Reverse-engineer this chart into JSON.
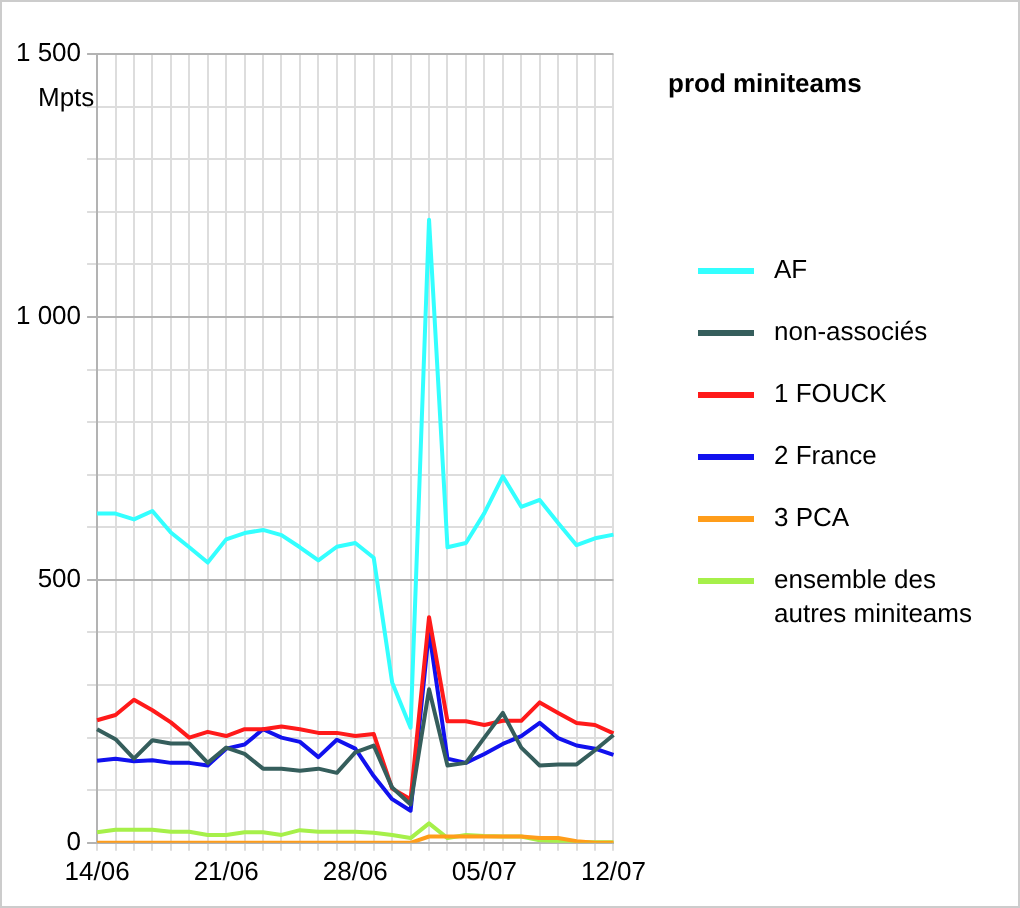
{
  "chart_data": {
    "type": "line",
    "title": "prod miniteams",
    "ylabel": "Mpts",
    "categories": [
      "14/06",
      null,
      null,
      null,
      null,
      null,
      null,
      "21/06",
      null,
      null,
      null,
      null,
      null,
      null,
      "28/06",
      null,
      null,
      null,
      null,
      null,
      null,
      "05/07",
      null,
      null,
      null,
      null,
      null,
      null,
      "12/07"
    ],
    "ylim": [
      0,
      1500
    ],
    "yticks": [
      0,
      {
        "value": 100,
        "label": null
      },
      {
        "value": 200,
        "label": null
      },
      {
        "value": 300,
        "label": null
      },
      {
        "value": 400,
        "label": null
      },
      500,
      {
        "value": 600,
        "label": null
      },
      {
        "value": 700,
        "label": null
      },
      {
        "value": 800,
        "label": null
      },
      {
        "value": 900,
        "label": null
      },
      {
        "value": 1000,
        "label": "1 000"
      },
      {
        "value": 1100,
        "label": null
      },
      {
        "value": 1200,
        "label": null
      },
      {
        "value": 1300,
        "label": null
      },
      {
        "value": 1400,
        "label": null
      },
      {
        "value": 1500,
        "label": "1 500"
      }
    ],
    "grid": true,
    "legend": "right",
    "series": [
      {
        "name": "AF",
        "color": "#33ffff",
        "values": [
          626,
          626,
          615,
          631,
          590,
          562,
          533,
          577,
          589,
          595,
          585,
          562,
          537,
          563,
          570,
          542,
          305,
          219,
          1185,
          562,
          570,
          627,
          697,
          639,
          652,
          608,
          566,
          579,
          586
        ]
      },
      {
        "name": "non-associés",
        "color": "#355e5c",
        "values": [
          216,
          197,
          160,
          195,
          189,
          189,
          152,
          181,
          169,
          141,
          141,
          137,
          141,
          133,
          172,
          185,
          105,
          73,
          292,
          147,
          152,
          200,
          247,
          181,
          147,
          149,
          149,
          176,
          205
        ]
      },
      {
        "name": "1 FOUCK",
        "color": "#ff1a1a",
        "values": [
          233,
          243,
          272,
          252,
          229,
          200,
          211,
          203,
          216,
          216,
          221,
          216,
          209,
          209,
          203,
          207,
          103,
          83,
          429,
          231,
          231,
          224,
          232,
          232,
          267,
          247,
          228,
          224,
          208
        ]
      },
      {
        "name": "2 France",
        "color": "#1111ee",
        "values": [
          156,
          160,
          155,
          157,
          152,
          152,
          147,
          179,
          187,
          216,
          200,
          192,
          163,
          196,
          179,
          127,
          83,
          61,
          403,
          160,
          152,
          169,
          188,
          203,
          228,
          199,
          185,
          179,
          167
        ]
      },
      {
        "name": "3 PCA",
        "color": "#ff9d1a",
        "values": [
          0,
          0,
          0,
          0,
          0,
          0,
          0,
          0,
          0,
          0,
          0,
          0,
          0,
          0,
          0,
          0,
          0,
          0,
          12,
          12,
          12,
          12,
          12,
          12,
          9,
          9,
          3,
          0,
          0
        ]
      },
      {
        "name": "ensemble des autres miniteams",
        "color": "#a6f04a",
        "values": [
          20,
          25,
          25,
          25,
          21,
          21,
          15,
          15,
          20,
          20,
          15,
          24,
          21,
          21,
          21,
          19,
          15,
          9,
          37,
          9,
          15,
          13,
          12,
          12,
          5,
          3,
          1,
          1,
          1
        ]
      }
    ]
  }
}
